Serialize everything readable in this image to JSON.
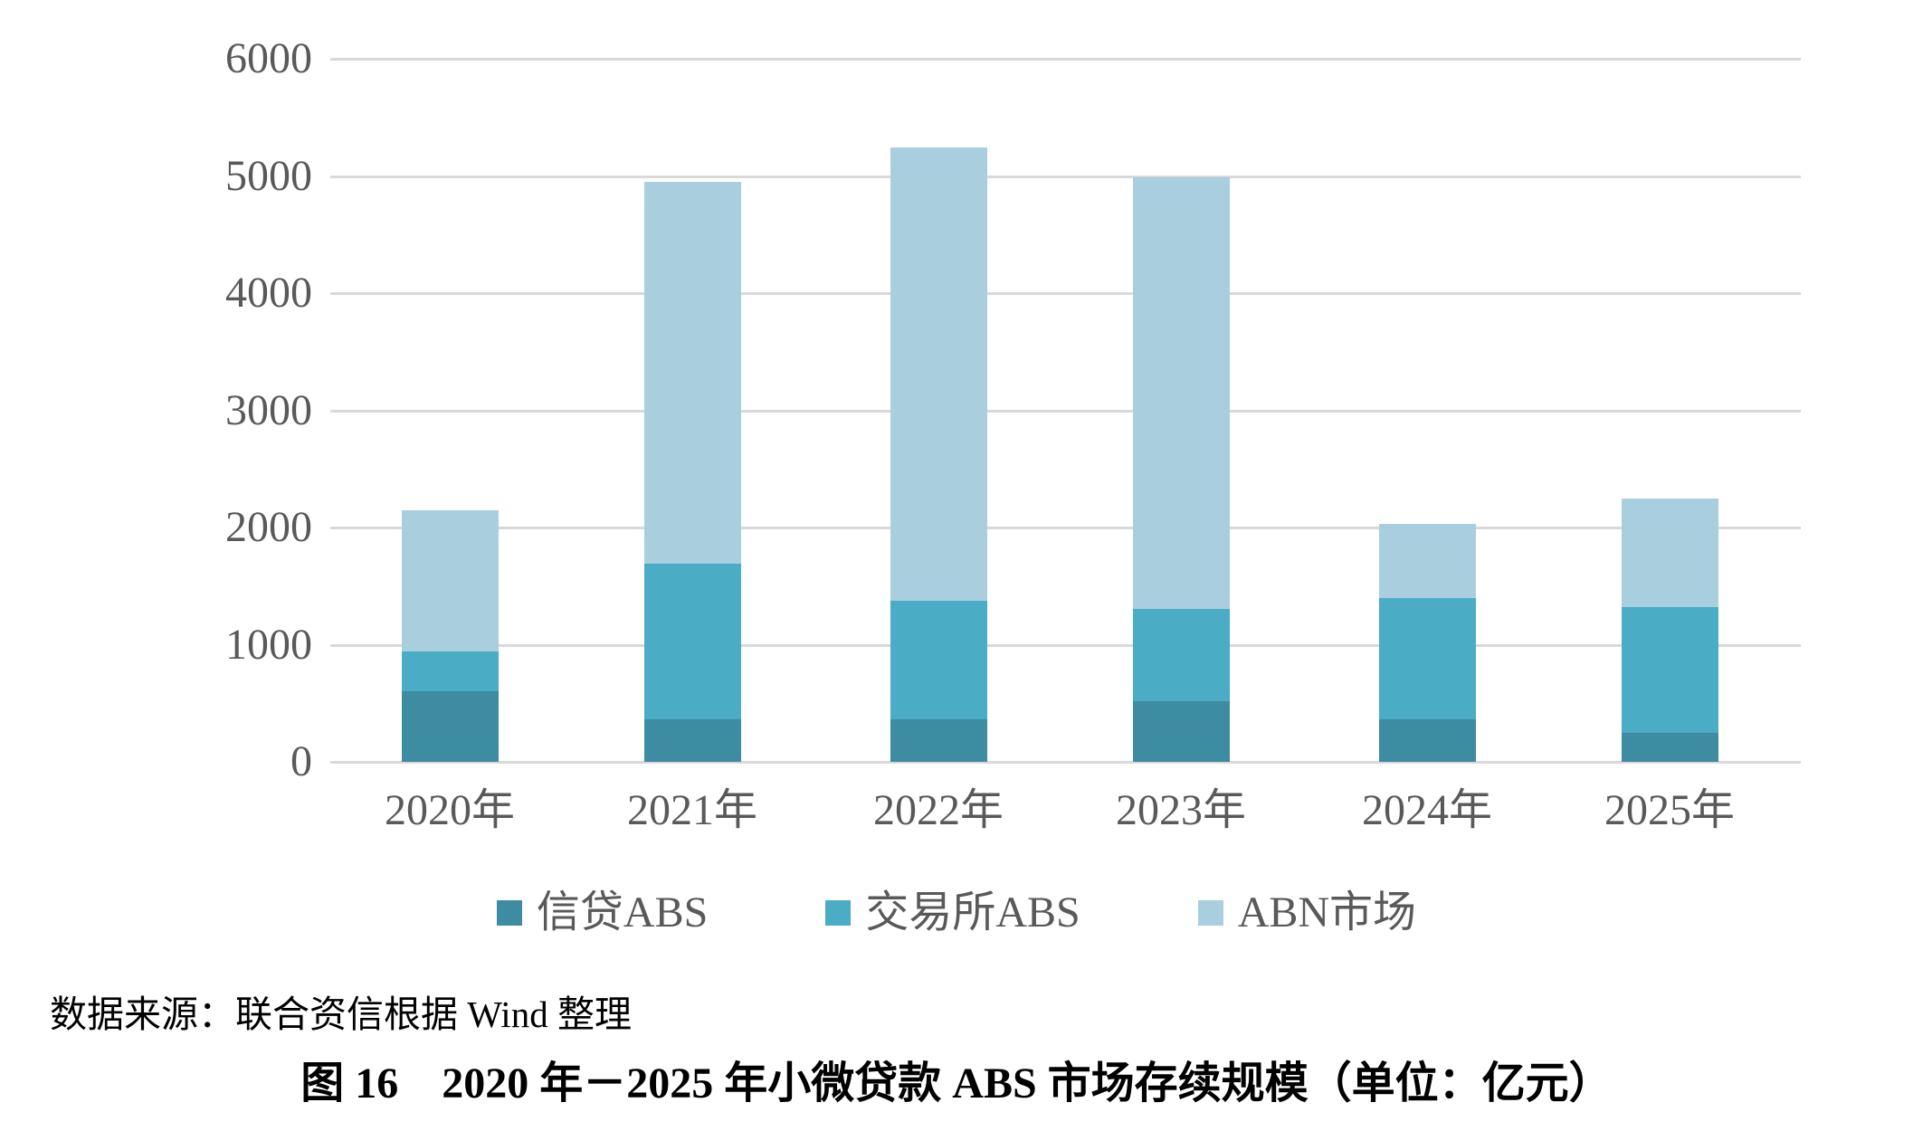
{
  "chart_data": {
    "type": "bar",
    "stacked": true,
    "categories": [
      "2020年",
      "2021年",
      "2022年",
      "2023年",
      "2024年",
      "2025年"
    ],
    "series": [
      {
        "name": "信贷ABS",
        "color": "#3D8CA1",
        "values": [
          600,
          365,
          360,
          515,
          360,
          245
        ]
      },
      {
        "name": "交易所ABS",
        "color": "#4AACC5",
        "values": [
          340,
          1330,
          1015,
          790,
          1040,
          1075
        ]
      },
      {
        "name": "ABN市场",
        "color": "#A9CEDE",
        "values": [
          1210,
          3255,
          3870,
          3680,
          630,
          925
        ]
      }
    ],
    "totals": [
      2150,
      4950,
      5245,
      4985,
      2030,
      2245
    ],
    "ylim": [
      0,
      6000
    ],
    "ytick_interval": 1000,
    "yticks": [
      "6000",
      "5000",
      "4000",
      "3000",
      "2000",
      "1000",
      "0"
    ],
    "grid": true,
    "legend_position": "bottom",
    "ylabel": "",
    "xlabel": "",
    "unit": "亿元"
  },
  "source_note": "数据来源：联合资信根据 Wind 整理",
  "caption": "图 16　2020 年－2025 年小微贷款 ABS 市场存续规模（单位：亿元）",
  "colors": {
    "gridline": "#d9d9d9",
    "axis_text": "#595959",
    "credit_abs": "#3D8CA1",
    "exchange_abs": "#4AACC5",
    "abn_market": "#A9CEDE"
  }
}
